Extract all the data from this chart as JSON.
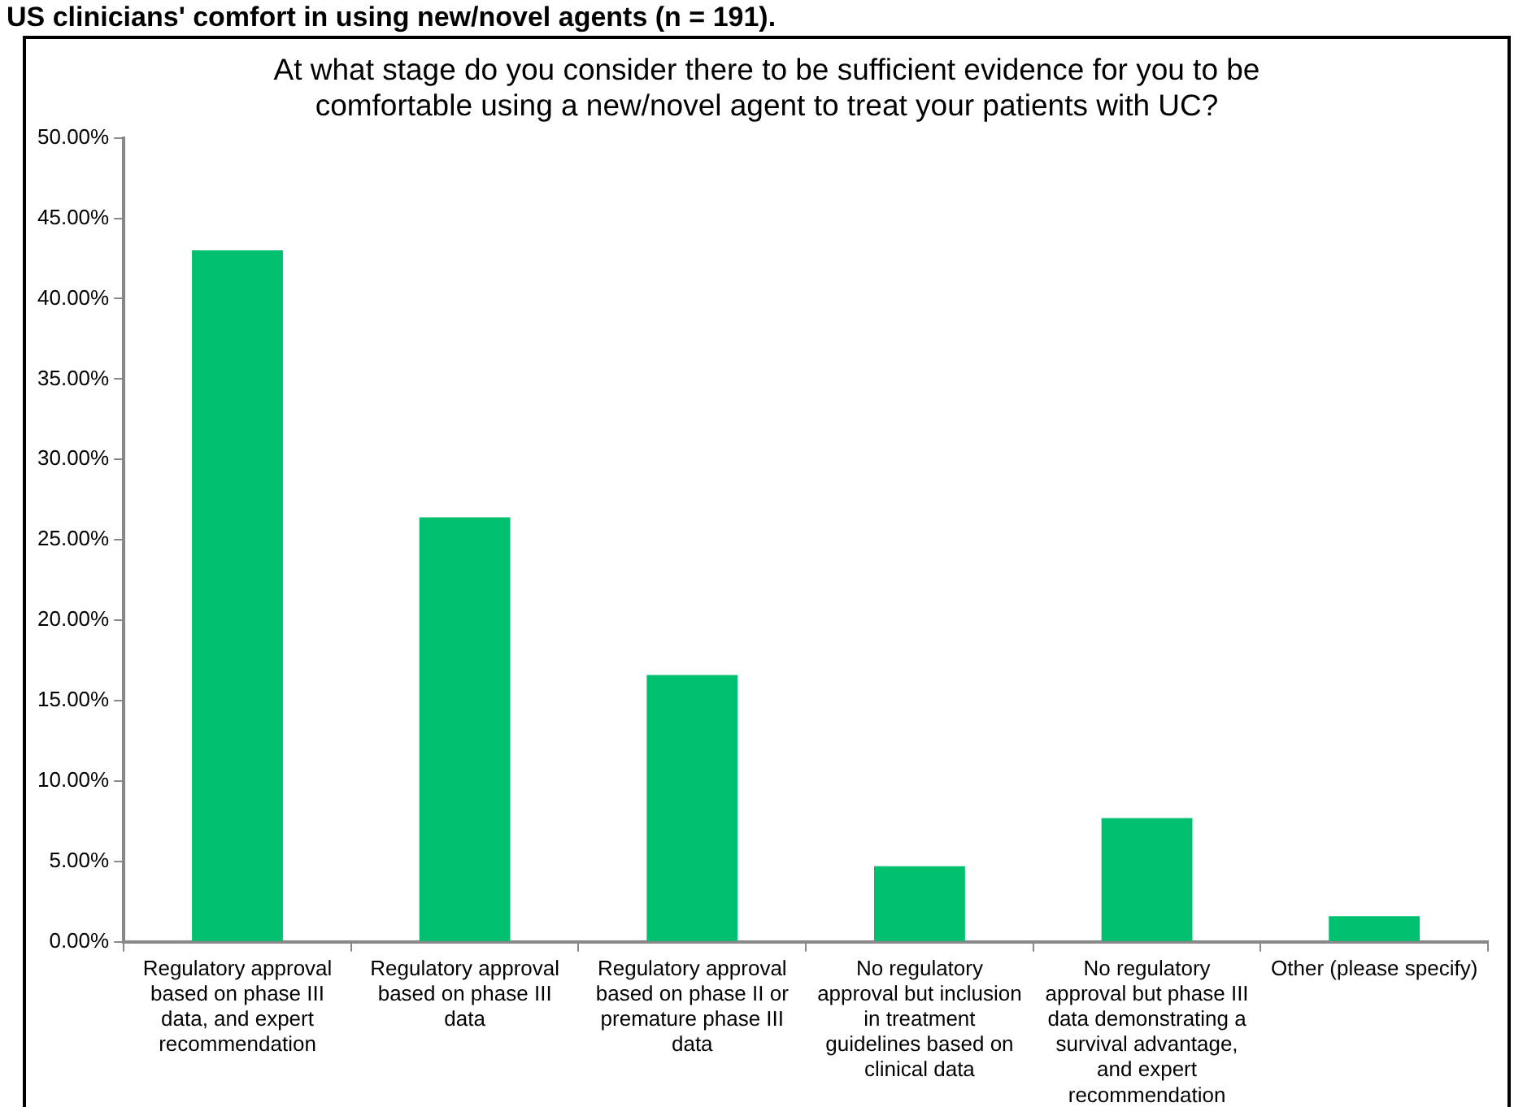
{
  "chart_data": {
    "type": "bar",
    "title": "At what stage do you consider there to be sufficient evidence for you to be comfortable using a new/novel agent to treat your patients with UC?",
    "annotations": [
      "US clinicians' comfort in using new/novel agents (n = 191)."
    ],
    "categories": [
      "Regulatory approval based on phase III data, and expert recommendation",
      "Regulatory approval based on phase III data",
      "Regulatory approval based on phase II or premature phase III data",
      "No regulatory approval but inclusion in treatment guidelines based on clinical data",
      "No regulatory approval but phase III data demonstrating a survival advantage, and expert recommendation",
      "Other (please specify)"
    ],
    "values": [
      43.0,
      26.4,
      16.6,
      4.7,
      7.7,
      1.6
    ],
    "color": "#00bf6f",
    "ylim": [
      0,
      50
    ],
    "yticks": [
      {
        "value": 0,
        "label": "0.00%"
      },
      {
        "value": 5,
        "label": "5.00%"
      },
      {
        "value": 10,
        "label": "10.00%"
      },
      {
        "value": 15,
        "label": "15.00%"
      },
      {
        "value": 20,
        "label": "20.00%"
      },
      {
        "value": 25,
        "label": "25.00%"
      },
      {
        "value": 30,
        "label": "30.00%"
      },
      {
        "value": 35,
        "label": "35.00%"
      },
      {
        "value": 40,
        "label": "40.00%"
      },
      {
        "value": 45,
        "label": "45.00%"
      },
      {
        "value": 50,
        "label": "50.00%"
      }
    ],
    "grid": false,
    "legend": false
  }
}
